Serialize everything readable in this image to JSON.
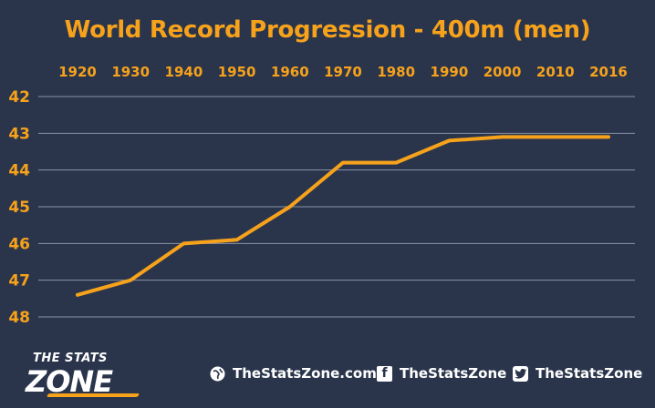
{
  "chart_data": {
    "type": "line",
    "title": "World Record Progression - 400m (men)",
    "x": [
      "1920",
      "1930",
      "1940",
      "1950",
      "1960",
      "1970",
      "1980",
      "1990",
      "2000",
      "2010",
      "2016"
    ],
    "series": [
      {
        "values": [
          47.4,
          47.0,
          46.0,
          45.9,
          45.0,
          43.8,
          43.8,
          43.2,
          43.1,
          43.1,
          43.1
        ]
      }
    ],
    "yticks": [
      42,
      43,
      44,
      45,
      46,
      47,
      48
    ],
    "ylim": [
      42,
      48
    ],
    "y_inverted": true,
    "x_axis_position": "top",
    "grid": true,
    "line_color": "#f7a21b",
    "tick_color": "#f7a21b",
    "grid_color": "#8a93a6",
    "background": "#2a354c"
  },
  "footer": {
    "logo_top": "THE STATS",
    "logo_bottom": "ZONE",
    "website": "TheStatsZone.com",
    "facebook": "TheStatsZone",
    "twitter": "TheStatsZone",
    "icons": [
      "globe-icon",
      "facebook-icon",
      "twitter-icon"
    ]
  }
}
